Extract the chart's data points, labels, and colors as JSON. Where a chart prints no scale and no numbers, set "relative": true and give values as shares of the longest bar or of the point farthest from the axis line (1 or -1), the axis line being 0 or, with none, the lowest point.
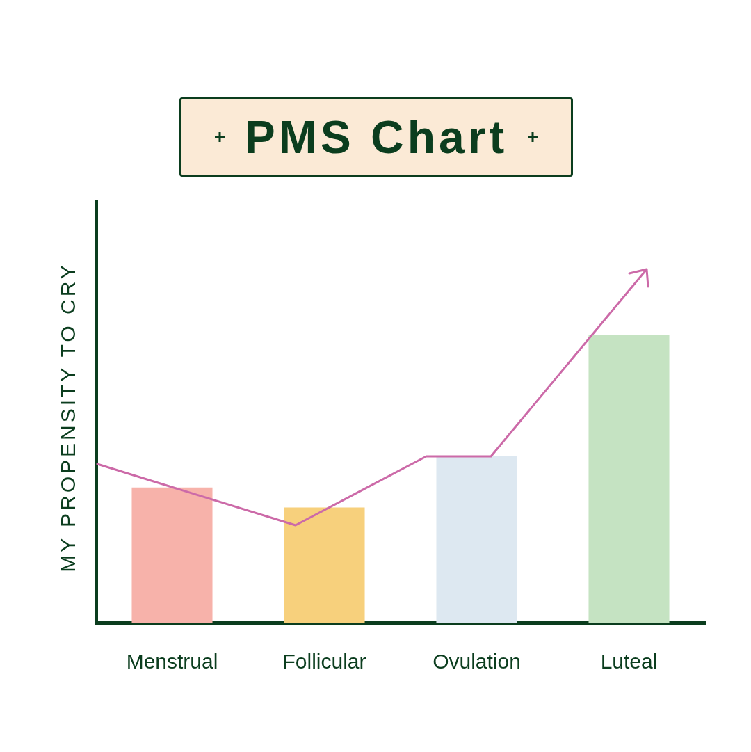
{
  "chart_data": {
    "type": "bar",
    "title": "PMS Chart",
    "ylabel": "MY PROPENSITY TO CRY",
    "categories": [
      "Menstrual",
      "Follicular",
      "Ovulation",
      "Luteal"
    ],
    "values": [
      0.47,
      0.4,
      0.58,
      1
    ],
    "colors": [
      "#f7b2aa",
      "#f7d07c",
      "#dde8f1",
      "#c5e3c2"
    ],
    "relative": true,
    "grid": false,
    "legend": false
  }
}
